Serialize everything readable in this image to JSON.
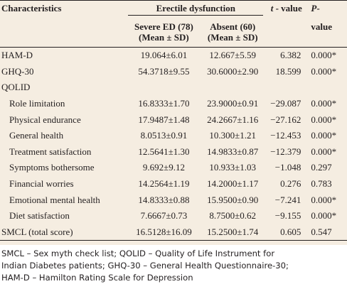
{
  "header": {
    "characteristics": "Characteristics",
    "group": "Erectile dysfunction",
    "t_value_italic": "t",
    "t_value_rest": "- value",
    "p_value_italic": "P",
    "p_value_rest": "-",
    "p_value_line2": "value",
    "severe_line1": "Severe ED (78)",
    "severe_line2": "(Mean ± SD)",
    "absent_line1": "Absent (60)",
    "absent_line2": "(Mean ± SD)"
  },
  "rows": [
    {
      "name": "HAM-D",
      "severe": "19.064±6.01",
      "absent": "12.667±5.59",
      "t": "6.382",
      "p": "0.000*"
    },
    {
      "name": "GHQ-30",
      "severe": "54.3718±9.55",
      "absent": "30.6000±2.90",
      "t": "18.599",
      "p": "0.000*"
    },
    {
      "name": "QOLID",
      "severe": "",
      "absent": "",
      "t": "",
      "p": ""
    },
    {
      "name": "Role limitation",
      "severe": "16.8333±1.70",
      "absent": "23.9000±0.91",
      "t": "−29.087",
      "p": "0.000*"
    },
    {
      "name": "Physical endurance",
      "severe": "17.9487±1.48",
      "absent": "24.2667±1.16",
      "t": "−27.162",
      "p": "0.000*"
    },
    {
      "name": "General health",
      "severe": "8.0513±0.91",
      "absent": "10.300±1.21",
      "t": "−12.453",
      "p": "0.000*"
    },
    {
      "name": "Treatment satisfaction",
      "severe": "12.5641±1.30",
      "absent": "14.9833±0.87",
      "t": "−12.379",
      "p": "0.000*"
    },
    {
      "name": "Symptoms bothersome",
      "severe": "9.692±9.12",
      "absent": "10.933±1.03",
      "t": "−1.048",
      "p": "0.297"
    },
    {
      "name": "Financial worries",
      "severe": "14.2564±1.19",
      "absent": "14.2000±1.17",
      "t": "0.276",
      "p": "0.783"
    },
    {
      "name": "Emotional mental health",
      "severe": "14.8333±0.88",
      "absent": "15.9500±0.90",
      "t": "−7.241",
      "p": "0.000*"
    },
    {
      "name": "Diet satisfaction",
      "severe": "7.6667±0.73",
      "absent": "8.7500±0.62",
      "t": "−9.155",
      "p": "0.000*"
    },
    {
      "name": "SMCL (total score)",
      "severe": "16.5128±16.09",
      "absent": "15.2500±1.74",
      "t": "0.605",
      "p": "0.547"
    }
  ],
  "footnote": {
    "line1": "SMCL – Sex myth check list; QOLID – Quality of Life Instrument for",
    "line2": "Indian Diabetes patients; GHQ-30 – General Health Questionnaire-30;",
    "line3": "HAM-D – Hamilton Rating Scale for Depression"
  }
}
